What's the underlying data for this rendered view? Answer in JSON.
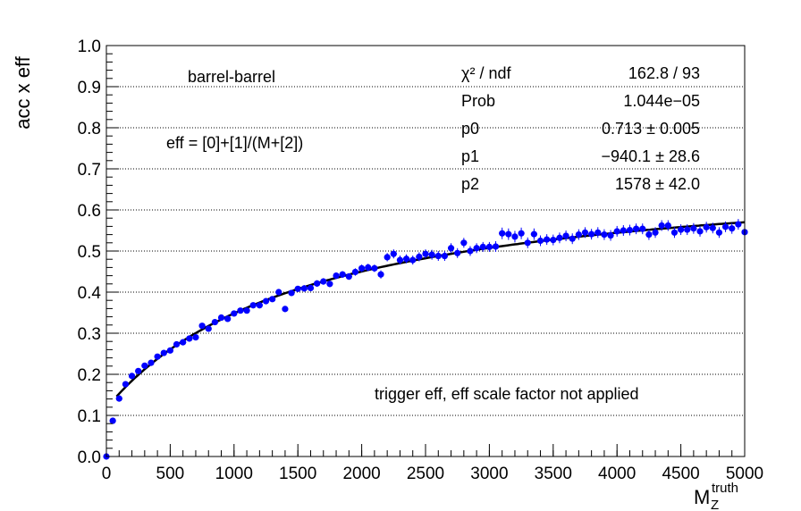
{
  "chart_data": {
    "type": "scatter",
    "ylabel": "acc x eff",
    "xlabel": {
      "base": "M",
      "sub": "Z",
      "sup": "truth"
    },
    "xlim": [
      0,
      5000
    ],
    "ylim": [
      0,
      1.0
    ],
    "x_ticks": [
      "0",
      "500",
      "1000",
      "1500",
      "2000",
      "2500",
      "3000",
      "3500",
      "4000",
      "4500",
      "5000"
    ],
    "y_ticks": [
      "0.0",
      "0.1",
      "0.2",
      "0.3",
      "0.4",
      "0.5",
      "0.6",
      "0.7",
      "0.8",
      "0.9",
      "1.0"
    ],
    "grid": "horizontal-dotted",
    "annotations": {
      "region": "barrel-barrel",
      "formula": "eff = [0]+[1]/(M+[2])",
      "note": "trigger eff, eff scale factor not applied"
    },
    "fit_stats": [
      {
        "label": "χ² / ndf",
        "value": "162.8 / 93"
      },
      {
        "label": "Prob",
        "value": "1.044e−05"
      },
      {
        "label": "p0",
        "value": "0.713 ± 0.005"
      },
      {
        "label": "p1",
        "value": "−940.1 ± 28.6"
      },
      {
        "label": "p2",
        "value": "1578 ± 42.0"
      }
    ],
    "fit_function": {
      "p0": 0.713,
      "p1": -940.1,
      "p2": 1578
    },
    "colors": {
      "points": "#0000ff",
      "fit": "#000000"
    },
    "series": [
      {
        "x": [
          0,
          50,
          100,
          150,
          200,
          250,
          300,
          350,
          400,
          450,
          500,
          550,
          600,
          650,
          700,
          750,
          800,
          850,
          900,
          950,
          1000,
          1050,
          1100,
          1150,
          1200,
          1250,
          1300,
          1350,
          1400,
          1450,
          1500,
          1550,
          1600,
          1650,
          1700,
          1750,
          1800,
          1850,
          1900,
          1950,
          2000,
          2050,
          2100,
          2150,
          2200,
          2250,
          2300,
          2350,
          2400,
          2450,
          2500,
          2550,
          2600,
          2650,
          2700,
          2750,
          2800,
          2850,
          2900,
          2950,
          3000,
          3050,
          3100,
          3150,
          3200,
          3250,
          3300,
          3350,
          3400,
          3450,
          3500,
          3550,
          3600,
          3650,
          3700,
          3750,
          3800,
          3850,
          3900,
          3950,
          4000,
          4050,
          4100,
          4150,
          4200,
          4250,
          4300,
          4350,
          4400,
          4450,
          4500,
          4550,
          4600,
          4650,
          4700,
          4750,
          4800,
          4850,
          4900,
          4950,
          5000
        ],
        "y": [
          0.0,
          0.087,
          0.141,
          0.176,
          0.196,
          0.208,
          0.221,
          0.228,
          0.243,
          0.252,
          0.258,
          0.273,
          0.278,
          0.287,
          0.29,
          0.318,
          0.311,
          0.327,
          0.338,
          0.335,
          0.348,
          0.355,
          0.355,
          0.368,
          0.368,
          0.378,
          0.383,
          0.4,
          0.359,
          0.398,
          0.408,
          0.409,
          0.41,
          0.421,
          0.426,
          0.42,
          0.44,
          0.443,
          0.438,
          0.449,
          0.458,
          0.46,
          0.458,
          0.443,
          0.485,
          0.493,
          0.478,
          0.481,
          0.478,
          0.486,
          0.493,
          0.491,
          0.488,
          0.488,
          0.507,
          0.495,
          0.52,
          0.5,
          0.507,
          0.51,
          0.51,
          0.511,
          0.543,
          0.541,
          0.535,
          0.543,
          0.52,
          0.541,
          0.525,
          0.528,
          0.527,
          0.532,
          0.537,
          0.53,
          0.54,
          0.545,
          0.541,
          0.545,
          0.54,
          0.538,
          0.548,
          0.55,
          0.551,
          0.554,
          0.554,
          0.54,
          0.545,
          0.562,
          0.562,
          0.545,
          0.552,
          0.552,
          0.555,
          0.548,
          0.558,
          0.556,
          0.545,
          0.559,
          0.555,
          0.565,
          0.546
        ],
        "yerr": [
          0.004,
          0.005,
          0.005,
          0.005,
          0.005,
          0.005,
          0.005,
          0.005,
          0.005,
          0.005,
          0.005,
          0.006,
          0.006,
          0.006,
          0.006,
          0.006,
          0.006,
          0.006,
          0.006,
          0.006,
          0.006,
          0.006,
          0.007,
          0.007,
          0.007,
          0.007,
          0.007,
          0.007,
          0.007,
          0.007,
          0.007,
          0.008,
          0.008,
          0.008,
          0.008,
          0.008,
          0.008,
          0.008,
          0.008,
          0.009,
          0.009,
          0.009,
          0.009,
          0.01,
          0.01,
          0.011,
          0.011,
          0.011,
          0.011,
          0.011,
          0.011,
          0.012,
          0.012,
          0.012,
          0.012,
          0.012,
          0.012,
          0.012,
          0.012,
          0.012,
          0.012,
          0.013,
          0.014,
          0.014,
          0.014,
          0.014,
          0.013,
          0.014,
          0.013,
          0.013,
          0.013,
          0.013,
          0.013,
          0.013,
          0.013,
          0.013,
          0.013,
          0.013,
          0.013,
          0.013,
          0.013,
          0.013,
          0.013,
          0.013,
          0.013,
          0.013,
          0.013,
          0.013,
          0.013,
          0.013,
          0.013,
          0.013,
          0.013,
          0.013,
          0.013,
          0.013,
          0.013,
          0.013,
          0.013,
          0.013,
          0.013
        ]
      }
    ]
  }
}
